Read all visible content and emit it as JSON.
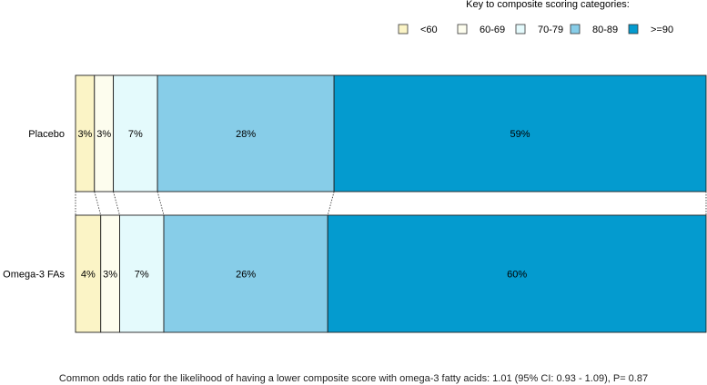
{
  "legend": {
    "title": "Key to composite scoring categories:",
    "items": [
      {
        "label": "<60",
        "color": "#fbf4c6"
      },
      {
        "label": "60-69",
        "color": "#fdfdee"
      },
      {
        "label": "70-79",
        "color": "#e4fafc"
      },
      {
        "label": "80-89",
        "color": "#87cde8"
      },
      {
        "label": ">=90",
        "color": "#049bcf"
      }
    ]
  },
  "chart_data": {
    "type": "bar",
    "orientation": "horizontal-stacked-100",
    "categories": [
      "Placebo",
      "Omega-3 FAs"
    ],
    "series": [
      {
        "name": "<60",
        "values": [
          3,
          4
        ],
        "labels": [
          "3%",
          "4%"
        ]
      },
      {
        "name": "60-69",
        "values": [
          3,
          3
        ],
        "labels": [
          "3%",
          "3%"
        ]
      },
      {
        "name": "70-79",
        "values": [
          7,
          7
        ],
        "labels": [
          "7%",
          "7%"
        ]
      },
      {
        "name": "80-89",
        "values": [
          28,
          26
        ],
        "labels": [
          "28%",
          "26%"
        ]
      },
      {
        "name": ">=90",
        "values": [
          59,
          60
        ],
        "labels": [
          "59%",
          "60%"
        ]
      }
    ],
    "xlim": [
      0,
      100
    ],
    "legend_position": "top-right"
  },
  "footnote": "Common odds ratio for the likelihood of having a lower composite score with omega-3 fatty acids: 1.01 (95% CI: 0.93 - 1.09), P= 0.87"
}
